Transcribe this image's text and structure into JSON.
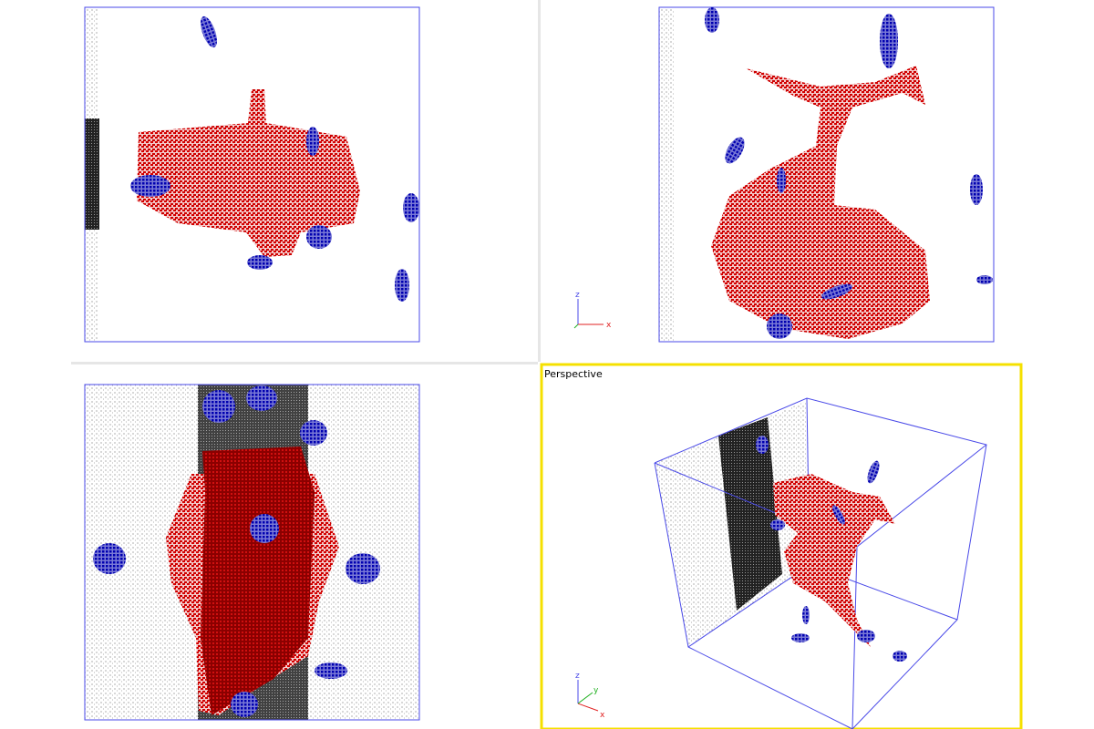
{
  "top_right_tripod": {
    "up": "z",
    "right": "x"
  },
  "bottom_right": {
    "title": "Perspective",
    "tripod": {
      "up": "z",
      "depth": "y",
      "right": "x"
    }
  }
}
